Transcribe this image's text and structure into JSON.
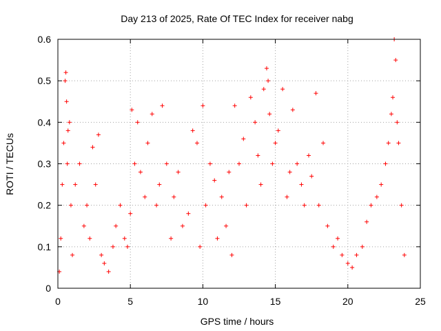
{
  "chart_data": {
    "type": "scatter",
    "title": "Day 213 of 2025, Rate Of TEC Index for receiver nabg",
    "xlabel": "GPS time / hours",
    "ylabel": "ROTI / TECUs",
    "xlim": [
      0,
      25
    ],
    "ylim": [
      0,
      0.6
    ],
    "xticks": [
      0,
      5,
      10,
      15,
      20,
      25
    ],
    "yticks": [
      0,
      0.1,
      0.2,
      0.3,
      0.4,
      0.5,
      0.6
    ],
    "grid": true,
    "marker": "plus",
    "color": "#ff0000",
    "series": [
      {
        "x": [
          0.1,
          0.2,
          0.3,
          0.4,
          0.5,
          0.55,
          0.6,
          0.65,
          0.7,
          0.8,
          0.9,
          1.0,
          1.2,
          1.5,
          1.8,
          2.0,
          2.2,
          2.4,
          2.6,
          2.8,
          3.0,
          3.2,
          3.5,
          3.8,
          4.0,
          4.3,
          4.6,
          4.8,
          5.0,
          5.1,
          5.3,
          5.5,
          5.7,
          6.0,
          6.2,
          6.5,
          6.8,
          7.0,
          7.2,
          7.5,
          7.8,
          8.0,
          8.3,
          8.6,
          9.0,
          9.3,
          9.6,
          9.8,
          10.0,
          10.2,
          10.5,
          10.8,
          11.0,
          11.3,
          11.6,
          11.8,
          12.0,
          12.2,
          12.5,
          12.8,
          13.0,
          13.3,
          13.6,
          13.8,
          14.0,
          14.2,
          14.4,
          14.5,
          14.6,
          14.8,
          15.0,
          15.2,
          15.5,
          15.8,
          16.0,
          16.2,
          16.5,
          16.8,
          17.0,
          17.3,
          17.5,
          17.8,
          18.0,
          18.3,
          18.6,
          19.0,
          19.3,
          19.6,
          20.0,
          20.3,
          20.6,
          21.0,
          21.3,
          21.6,
          22.0,
          22.3,
          22.6,
          22.8,
          23.0,
          23.1,
          23.2,
          23.3,
          23.4,
          23.5,
          23.7,
          23.9
        ],
        "y": [
          0.04,
          0.12,
          0.25,
          0.35,
          0.5,
          0.52,
          0.45,
          0.3,
          0.38,
          0.4,
          0.2,
          0.08,
          0.25,
          0.3,
          0.15,
          0.2,
          0.12,
          0.34,
          0.25,
          0.37,
          0.08,
          0.06,
          0.04,
          0.1,
          0.15,
          0.2,
          0.12,
          0.1,
          0.18,
          0.43,
          0.3,
          0.4,
          0.28,
          0.22,
          0.35,
          0.42,
          0.2,
          0.25,
          0.44,
          0.3,
          0.12,
          0.22,
          0.28,
          0.15,
          0.18,
          0.38,
          0.35,
          0.1,
          0.44,
          0.2,
          0.3,
          0.26,
          0.12,
          0.22,
          0.15,
          0.28,
          0.08,
          0.44,
          0.3,
          0.36,
          0.2,
          0.46,
          0.4,
          0.32,
          0.25,
          0.48,
          0.53,
          0.5,
          0.42,
          0.3,
          0.35,
          0.38,
          0.48,
          0.22,
          0.28,
          0.43,
          0.3,
          0.25,
          0.2,
          0.32,
          0.27,
          0.47,
          0.2,
          0.35,
          0.15,
          0.1,
          0.12,
          0.08,
          0.06,
          0.05,
          0.08,
          0.1,
          0.16,
          0.2,
          0.22,
          0.25,
          0.3,
          0.35,
          0.42,
          0.46,
          0.6,
          0.55,
          0.4,
          0.35,
          0.2,
          0.08
        ]
      }
    ]
  }
}
